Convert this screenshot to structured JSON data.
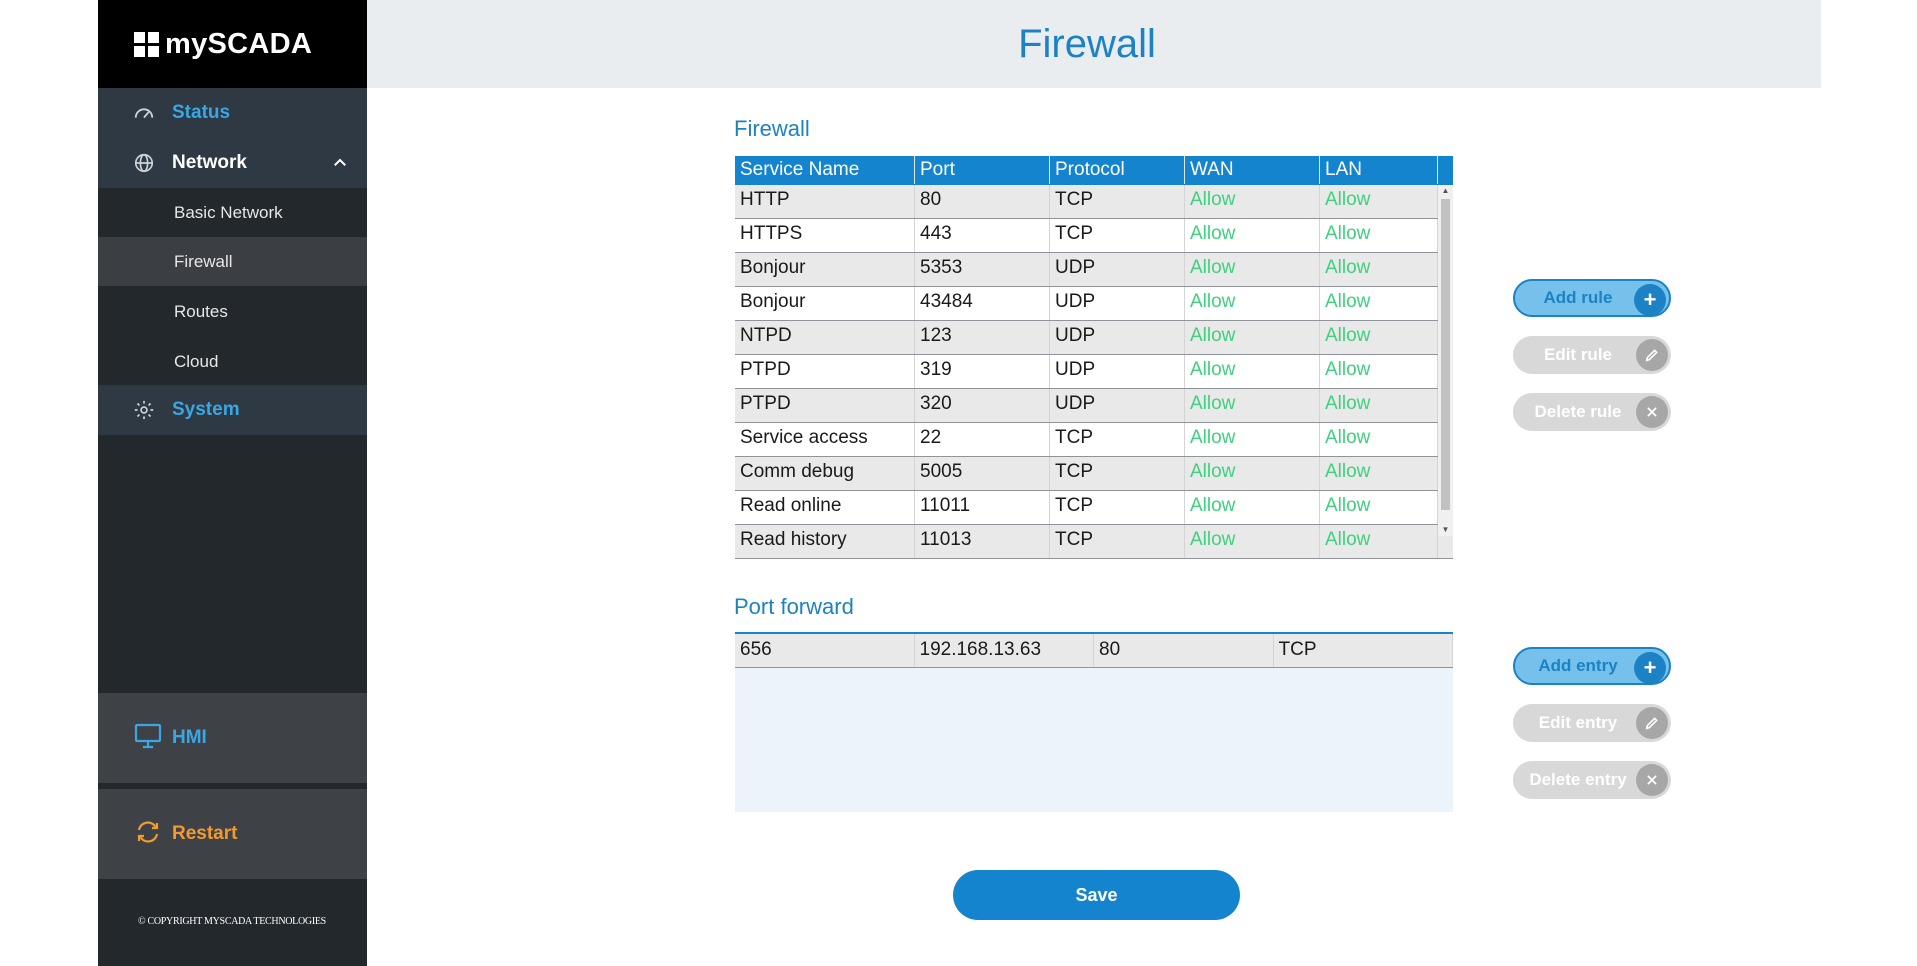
{
  "sidebar": {
    "logo": "mySCADA",
    "status_label": "Status",
    "network_label": "Network",
    "network_items": [
      "Basic Network",
      "Firewall",
      "Routes",
      "Cloud"
    ],
    "active_item": "Firewall",
    "system_label": "System",
    "hmi_label": "HMI",
    "restart_label": "Restart",
    "copyright": "© COPYRIGHT MYSCADA TECHNOLOGIES"
  },
  "header": {
    "title": "Firewall"
  },
  "firewall": {
    "section_title": "Firewall",
    "columns": [
      "Service Name",
      "Port",
      "Protocol",
      "WAN",
      "LAN"
    ],
    "rows": [
      [
        "HTTP",
        "80",
        "TCP",
        "Allow",
        "Allow"
      ],
      [
        "HTTPS",
        "443",
        "TCP",
        "Allow",
        "Allow"
      ],
      [
        "Bonjour",
        "5353",
        "UDP",
        "Allow",
        "Allow"
      ],
      [
        "Bonjour",
        "43484",
        "UDP",
        "Allow",
        "Allow"
      ],
      [
        "NTPD",
        "123",
        "UDP",
        "Allow",
        "Allow"
      ],
      [
        "PTPD",
        "319",
        "UDP",
        "Allow",
        "Allow"
      ],
      [
        "PTPD",
        "320",
        "UDP",
        "Allow",
        "Allow"
      ],
      [
        "Service access",
        "22",
        "TCP",
        "Allow",
        "Allow"
      ],
      [
        "Comm debug",
        "5005",
        "TCP",
        "Allow",
        "Allow"
      ],
      [
        "Read online",
        "11011",
        "TCP",
        "Allow",
        "Allow"
      ],
      [
        "Read history",
        "11013",
        "TCP",
        "Allow",
        "Allow"
      ]
    ],
    "add_label": "Add rule",
    "edit_label": "Edit rule",
    "delete_label": "Delete rule"
  },
  "port_forward": {
    "section_title": "Port forward",
    "rows": [
      [
        "656",
        "192.168.13.63",
        "80",
        "TCP"
      ]
    ],
    "add_label": "Add entry",
    "edit_label": "Edit entry",
    "delete_label": "Delete entry"
  },
  "save_label": "Save",
  "colors": {
    "accent": "#1c82c4",
    "allow": "#3fd07f",
    "restart": "#f39a2e",
    "sidebar": "#23282d"
  }
}
